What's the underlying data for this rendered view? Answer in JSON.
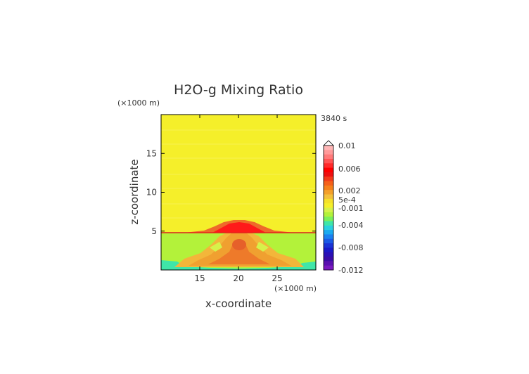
{
  "chart_data": {
    "type": "heatmap",
    "title": "H2O-g Mixing Ratio",
    "xlabel": "x-coordinate",
    "ylabel": "z-coordinate",
    "x_unit_label": "(×1000 m)",
    "y_unit_label": "(×1000 m)",
    "time_label": "3840 s",
    "xlim": [
      10,
      30
    ],
    "ylim": [
      0,
      20
    ],
    "x_ticks": [
      15,
      20,
      25
    ],
    "y_ticks": [
      5,
      10,
      15
    ],
    "colorbar": {
      "labels": [
        "0.01",
        "0.006",
        "0.002",
        "5e-4",
        "-0.001",
        "-0.004",
        "-0.008",
        "-0.012"
      ],
      "levels": [
        0.01,
        0.006,
        0.002,
        0.0005,
        -0.001,
        -0.004,
        -0.008,
        -0.012
      ],
      "extend": "max"
    },
    "regions": [
      {
        "name": "upper layer (z > 5)",
        "value": 0.0003,
        "color": "#f5ef2a"
      },
      {
        "name": "lower layer (z < 5)",
        "value": -0.0008,
        "color": "#b3f23a"
      },
      {
        "name": "central plume",
        "value": 0.002,
        "color": "#f0a030"
      },
      {
        "name": "plume core",
        "value": 0.003,
        "color": "#ee6a2a"
      },
      {
        "name": "dome top",
        "value": 0.006,
        "color": "#ff1a1a"
      },
      {
        "name": "near-ground layer",
        "value": -0.002,
        "color": "#3fe6a8"
      }
    ]
  },
  "colors": {
    "upper": "#f5ef2a",
    "lower": "#b3f23a",
    "orange_light": "#f3b63a",
    "orange": "#f0a030",
    "orange_dark": "#ee7a2a",
    "red": "#ff1a1a",
    "red_dark": "#e6201a",
    "teal": "#3fe6a8",
    "axis": "#000000"
  }
}
